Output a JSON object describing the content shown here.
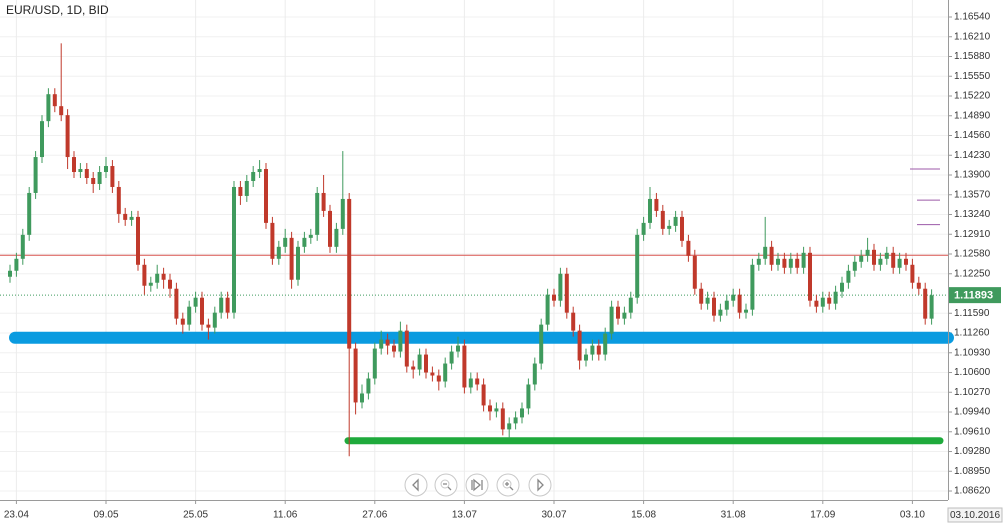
{
  "chart_data": {
    "type": "candlestick",
    "title": "EUR/USD, 1D, BID",
    "up_color": "#3f9a5d",
    "down_color": "#c0392b",
    "grid": true,
    "categories": [
      null,
      "23.04",
      null,
      null,
      null,
      null,
      null,
      null,
      null,
      null,
      null,
      null,
      null,
      null,
      null,
      "09.05",
      null,
      null,
      null,
      null,
      null,
      null,
      null,
      null,
      null,
      null,
      null,
      null,
      null,
      "25.05",
      null,
      null,
      null,
      null,
      null,
      null,
      null,
      null,
      null,
      null,
      null,
      null,
      null,
      "11.06",
      null,
      null,
      null,
      null,
      null,
      null,
      null,
      null,
      null,
      null,
      null,
      null,
      null,
      "27.06",
      null,
      null,
      null,
      null,
      null,
      null,
      null,
      null,
      null,
      null,
      null,
      null,
      null,
      "13.07",
      null,
      null,
      null,
      null,
      null,
      null,
      null,
      null,
      null,
      null,
      null,
      null,
      null,
      "30.07",
      null,
      null,
      null,
      null,
      null,
      null,
      null,
      null,
      null,
      null,
      null,
      null,
      null,
      "15.08",
      null,
      null,
      null,
      null,
      null,
      null,
      null,
      null,
      null,
      null,
      null,
      null,
      null,
      "31.08",
      null,
      null,
      null,
      null,
      null,
      null,
      null,
      null,
      null,
      null,
      null,
      null,
      null,
      "17.09",
      null,
      null,
      null,
      null,
      null,
      null,
      null,
      null,
      null,
      null,
      null,
      null,
      null,
      "03.10",
      null,
      null,
      null
    ],
    "cursor_label": "03.10.2016",
    "open": [
      1.122,
      1.123,
      1.125,
      1.129,
      1.136,
      1.142,
      1.148,
      1.1525,
      1.1505,
      1.149,
      1.142,
      1.1395,
      1.14,
      1.1385,
      1.1375,
      1.1395,
      1.1405,
      1.137,
      1.1325,
      1.1315,
      1.132,
      1.124,
      1.1205,
      1.121,
      1.1225,
      1.1215,
      1.12,
      1.115,
      1.114,
      1.117,
      1.1185,
      1.114,
      1.1135,
      1.116,
      1.1185,
      1.116,
      1.137,
      1.1355,
      1.138,
      1.1395,
      1.14,
      1.131,
      1.125,
      1.127,
      1.1285,
      1.1215,
      1.127,
      1.1285,
      1.129,
      1.136,
      1.133,
      1.127,
      1.13,
      1.135,
      1.11,
      1.101,
      1.1025,
      1.105,
      1.11,
      1.1115,
      1.1105,
      1.1095,
      1.113,
      1.107,
      1.1065,
      1.109,
      1.106,
      1.1055,
      1.1045,
      1.1075,
      1.1095,
      1.1105,
      1.1035,
      1.105,
      1.104,
      1.1005,
      1.0995,
      1.1,
      1.0965,
      1.0975,
      1.0985,
      1.1,
      1.104,
      1.1075,
      1.114,
      1.119,
      1.118,
      1.1225,
      1.116,
      1.113,
      1.108,
      1.109,
      1.1105,
      1.109,
      1.1125,
      1.117,
      1.115,
      1.116,
      1.1185,
      1.129,
      1.131,
      1.135,
      1.133,
      1.13,
      1.1305,
      1.132,
      1.128,
      1.1255,
      1.12,
      1.1175,
      1.1185,
      1.1155,
      1.1165,
      1.118,
      1.119,
      1.116,
      1.1165,
      1.124,
      1.125,
      1.127,
      1.124,
      1.125,
      1.1235,
      1.125,
      1.1235,
      1.126,
      1.118,
      1.117,
      1.1185,
      1.1175,
      1.1195,
      1.121,
      1.123,
      1.1245,
      1.1255,
      1.1265,
      1.124,
      1.125,
      1.126,
      1.1235,
      1.125,
      1.124,
      1.121,
      1.12,
      1.115
    ],
    "high": [
      1.124,
      1.126,
      1.13,
      1.137,
      1.143,
      1.149,
      1.1535,
      1.1535,
      1.161,
      1.15,
      1.143,
      1.141,
      1.141,
      1.1395,
      1.1405,
      1.142,
      1.1415,
      1.138,
      1.1335,
      1.133,
      1.133,
      1.125,
      1.122,
      1.124,
      1.1235,
      1.1225,
      1.121,
      1.116,
      1.118,
      1.1195,
      1.1195,
      1.115,
      1.117,
      1.1195,
      1.1195,
      1.138,
      1.138,
      1.139,
      1.1405,
      1.1415,
      1.141,
      1.132,
      1.128,
      1.13,
      1.1295,
      1.128,
      1.1295,
      1.13,
      1.137,
      1.139,
      1.134,
      1.131,
      1.143,
      1.136,
      1.111,
      1.104,
      1.106,
      1.111,
      1.113,
      1.1125,
      1.1115,
      1.1145,
      1.114,
      1.108,
      1.11,
      1.11,
      1.107,
      1.1065,
      1.1085,
      1.1105,
      1.112,
      1.1115,
      1.106,
      1.106,
      1.105,
      1.1015,
      1.101,
      1.101,
      1.0985,
      1.0995,
      1.101,
      1.105,
      1.1085,
      1.115,
      1.12,
      1.12,
      1.1235,
      1.1235,
      1.117,
      1.114,
      1.11,
      1.1115,
      1.1115,
      1.1135,
      1.118,
      1.118,
      1.117,
      1.1195,
      1.13,
      1.132,
      1.137,
      1.136,
      1.134,
      1.1315,
      1.133,
      1.133,
      1.129,
      1.1265,
      1.121,
      1.1195,
      1.1195,
      1.1175,
      1.119,
      1.12,
      1.12,
      1.1175,
      1.125,
      1.126,
      1.132,
      1.128,
      1.126,
      1.126,
      1.126,
      1.126,
      1.127,
      1.127,
      1.119,
      1.1195,
      1.1195,
      1.1205,
      1.122,
      1.124,
      1.1255,
      1.1265,
      1.1285,
      1.1275,
      1.126,
      1.127,
      1.127,
      1.126,
      1.126,
      1.125,
      1.122,
      1.121,
      1.1199
    ],
    "low": [
      1.121,
      1.122,
      1.124,
      1.128,
      1.135,
      1.141,
      1.147,
      1.1495,
      1.148,
      1.14,
      1.1385,
      1.1385,
      1.1375,
      1.136,
      1.1365,
      1.1385,
      1.136,
      1.131,
      1.1305,
      1.1305,
      1.123,
      1.119,
      1.1195,
      1.12,
      1.12,
      1.1185,
      1.114,
      1.1125,
      1.113,
      1.116,
      1.113,
      1.1115,
      1.1125,
      1.115,
      1.115,
      1.115,
      1.134,
      1.1345,
      1.137,
      1.1385,
      1.13,
      1.124,
      1.124,
      1.126,
      1.12,
      1.1205,
      1.126,
      1.1275,
      1.128,
      1.132,
      1.126,
      1.126,
      1.129,
      1.092,
      1.099,
      1.1,
      1.1015,
      1.104,
      1.109,
      1.109,
      1.1085,
      1.1085,
      1.106,
      1.105,
      1.1055,
      1.105,
      1.1045,
      1.103,
      1.1035,
      1.1065,
      1.1085,
      1.1025,
      1.1025,
      1.103,
      1.0995,
      1.098,
      1.0985,
      1.0955,
      1.095,
      1.0965,
      1.0975,
      1.099,
      1.103,
      1.1065,
      1.113,
      1.117,
      1.117,
      1.115,
      1.112,
      1.1065,
      1.107,
      1.108,
      1.108,
      1.108,
      1.1115,
      1.114,
      1.114,
      1.115,
      1.1175,
      1.128,
      1.13,
      1.132,
      1.129,
      1.129,
      1.1295,
      1.127,
      1.1245,
      1.119,
      1.1165,
      1.1165,
      1.1145,
      1.1145,
      1.1155,
      1.117,
      1.115,
      1.115,
      1.1155,
      1.123,
      1.124,
      1.123,
      1.123,
      1.1225,
      1.1225,
      1.1225,
      1.1225,
      1.117,
      1.116,
      1.116,
      1.1165,
      1.1165,
      1.1185,
      1.12,
      1.122,
      1.1235,
      1.1245,
      1.123,
      1.123,
      1.124,
      1.1225,
      1.1225,
      1.123,
      1.12,
      1.119,
      1.114,
      1.114
    ],
    "close": [
      1.123,
      1.125,
      1.129,
      1.136,
      1.142,
      1.148,
      1.1525,
      1.1505,
      1.149,
      1.142,
      1.1395,
      1.14,
      1.1385,
      1.1375,
      1.1395,
      1.1405,
      1.137,
      1.1325,
      1.1315,
      1.132,
      1.124,
      1.1205,
      1.121,
      1.1225,
      1.1215,
      1.12,
      1.115,
      1.114,
      1.117,
      1.1185,
      1.114,
      1.1135,
      1.116,
      1.1185,
      1.116,
      1.137,
      1.1355,
      1.138,
      1.1395,
      1.14,
      1.131,
      1.125,
      1.127,
      1.1285,
      1.1215,
      1.127,
      1.1285,
      1.129,
      1.136,
      1.133,
      1.127,
      1.13,
      1.135,
      1.11,
      1.101,
      1.1025,
      1.105,
      1.11,
      1.1115,
      1.1105,
      1.1095,
      1.113,
      1.107,
      1.1065,
      1.109,
      1.106,
      1.1055,
      1.1045,
      1.1075,
      1.1095,
      1.1105,
      1.1035,
      1.105,
      1.104,
      1.1005,
      1.0995,
      1.1,
      1.0965,
      1.0975,
      1.0985,
      1.1,
      1.104,
      1.1075,
      1.114,
      1.119,
      1.118,
      1.1225,
      1.116,
      1.113,
      1.108,
      1.109,
      1.1105,
      1.109,
      1.1125,
      1.117,
      1.115,
      1.116,
      1.1185,
      1.129,
      1.131,
      1.135,
      1.133,
      1.13,
      1.1305,
      1.132,
      1.128,
      1.1255,
      1.12,
      1.1175,
      1.1185,
      1.1155,
      1.1165,
      1.118,
      1.119,
      1.116,
      1.1165,
      1.124,
      1.125,
      1.127,
      1.124,
      1.125,
      1.1235,
      1.125,
      1.1235,
      1.126,
      1.118,
      1.117,
      1.1185,
      1.1175,
      1.1195,
      1.121,
      1.123,
      1.1245,
      1.1255,
      1.1265,
      1.124,
      1.125,
      1.126,
      1.1235,
      1.125,
      1.124,
      1.121,
      1.12,
      1.115,
      1.1189
    ],
    "last_price": 1.11893,
    "last_price_color": "#3f9a5d",
    "levels": [
      {
        "value": 1.1256,
        "color": "#d9534f"
      },
      {
        "value": 1.1118,
        "color": "#0a9be0"
      },
      {
        "value": 1.0946,
        "color": "#1faa3c"
      },
      {
        "value": 1.14,
        "color": "#9c5aa8"
      },
      {
        "value": 1.1348,
        "color": "#9c5aa8"
      },
      {
        "value": 1.1307,
        "color": "#9c5aa8"
      }
    ],
    "ylim": [
      1.0847,
      1.16824
    ],
    "yticks": [
      {
        "value": 1.1654,
        "label": "1.16540"
      },
      {
        "value": 1.1621,
        "label": "1.16210"
      },
      {
        "value": 1.1588,
        "label": "1.15880"
      },
      {
        "value": 1.1555,
        "label": "1.15550"
      },
      {
        "value": 1.1522,
        "label": "1.15220"
      },
      {
        "value": 1.1489,
        "label": "1.14890"
      },
      {
        "value": 1.1456,
        "label": "1.14560"
      },
      {
        "value": 1.1423,
        "label": "1.14230"
      },
      {
        "value": 1.139,
        "label": "1.13900"
      },
      {
        "value": 1.1357,
        "label": "1.13570"
      },
      {
        "value": 1.1324,
        "label": "1.13240"
      },
      {
        "value": 1.1291,
        "label": "1.12910"
      },
      {
        "value": 1.1258,
        "label": "1.12580"
      },
      {
        "value": 1.1225,
        "label": "1.12250"
      },
      {
        "value": 1.1159,
        "label": "1.11590"
      },
      {
        "value": 1.1126,
        "label": "1.11260"
      },
      {
        "value": 1.1093,
        "label": "1.10930"
      },
      {
        "value": 1.106,
        "label": "1.10600"
      },
      {
        "value": 1.1027,
        "label": "1.10270"
      },
      {
        "value": 1.0994,
        "label": "1.09940"
      },
      {
        "value": 1.0961,
        "label": "1.09610"
      },
      {
        "value": 1.0928,
        "label": "1.09280"
      },
      {
        "value": 1.0895,
        "label": "1.08950"
      },
      {
        "value": 1.0862,
        "label": "1.08620"
      }
    ]
  }
}
